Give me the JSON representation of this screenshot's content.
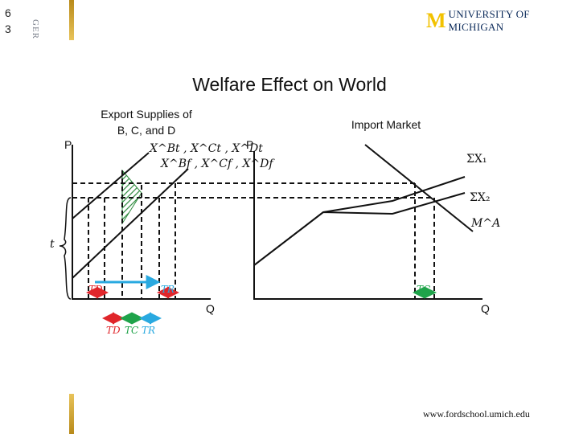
{
  "slide": {
    "number_line1": "6",
    "number_line2": "3",
    "ger": "GER"
  },
  "logo": {
    "mark": "M",
    "text": "UNIVERSITY OF MICHIGAN"
  },
  "title": "Welfare Effect on World",
  "export_panel": {
    "title_line1": "Export Supplies of",
    "title_line2": "B, C, and D",
    "p_axis": "P",
    "q_axis": "Q",
    "curve_label_top": "X^Bt , X^Ct , X^Dt",
    "curve_label_bottom": "X^Bf , X^Cf , X^Df",
    "tariff_label": "t",
    "td_label": "TD",
    "tr_label": "TR",
    "bottom_labels": [
      "TD",
      "TC",
      "TR"
    ]
  },
  "import_panel": {
    "title": "Import Market",
    "p_axis": "P",
    "q_axis": "Q",
    "sum_x1": "ΣX₁",
    "sum_x2": "ΣX₂",
    "ma": "M^A",
    "tc_label": "TC"
  },
  "footer": {
    "url": "www.fordschool.umich.edu"
  },
  "colors": {
    "gold": "#e8c35a",
    "navy": "#0b2a5a",
    "red": "#e0262b",
    "cyan": "#29a9e0",
    "green": "#1fa34a"
  }
}
